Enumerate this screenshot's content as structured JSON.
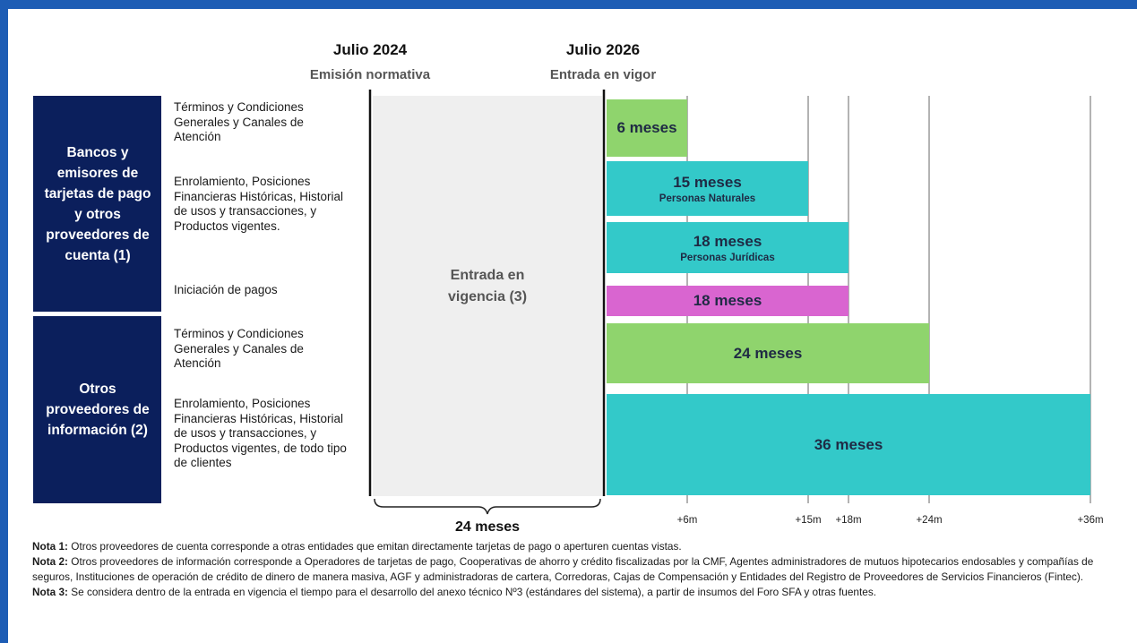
{
  "chart_data": {
    "type": "timeline",
    "milestones": [
      {
        "date": "Julio 2024",
        "label": "Emisión normativa"
      },
      {
        "date": "Julio 2026",
        "label": "Entrada en vigor"
      }
    ],
    "phase": {
      "label": "Entrada en vigencia (3)",
      "duration_label": "24 meses"
    },
    "groups": [
      {
        "name": "Bancos y emisores de tarjetas de pago y otros proveedores de cuenta (1)",
        "descriptions": [
          "Términos y Condiciones Generales y Canales de Atención",
          "Enrolamiento, Posiciones Financieras Históricas, Historial de usos y transacciones, y Productos vigentes.",
          "Iniciación de pagos"
        ]
      },
      {
        "name": "Otros proveedores de información (2)",
        "descriptions": [
          "Términos y Condiciones Generales y Canales de Atención",
          "Enrolamiento, Posiciones Financieras Históricas, Historial de usos y transacciones, y Productos vigentes, de todo tipo de clientes"
        ]
      }
    ],
    "values": [
      6,
      15,
      18,
      18,
      24,
      36
    ],
    "value_labels": [
      "6 meses",
      "15 meses",
      "18 meses",
      "18 meses",
      "24 meses",
      "36 meses"
    ],
    "sublabels": [
      null,
      "Personas Naturales",
      "Personas Jurídicas",
      null,
      null,
      null
    ],
    "colors": [
      "#8fd46d",
      "#33c9c9",
      "#33c9c9",
      "#d965d0",
      "#8fd46d",
      "#33c9c9"
    ],
    "xlim": [
      0,
      36
    ],
    "xticks": [
      {
        "value": 6,
        "label": "+6m"
      },
      {
        "value": 15,
        "label": "+15m"
      },
      {
        "value": 18,
        "label": "+18m"
      },
      {
        "value": 24,
        "label": "+24m"
      },
      {
        "value": 36,
        "label": "+36m"
      }
    ],
    "grid": true,
    "notes": [
      {
        "label": "Nota 1:",
        "text": "Otros proveedores de cuenta corresponde a otras entidades que emitan directamente tarjetas de pago o aperturen cuentas vistas."
      },
      {
        "label": "Nota 2:",
        "text": "Otros proveedores de información corresponde a Operadores de tarjetas de pago, Cooperativas de ahorro y crédito fiscalizadas por la CMF, Agentes administradores de mutuos hipotecarios endosables y compañías de seguros, Instituciones de operación de crédito de dinero de manera masiva, AGF y administradoras de cartera, Corredoras, Cajas de Compensación y Entidades del Registro de Proveedores de Servicios Financieros (Fintec)."
      },
      {
        "label": "Nota 3:",
        "text": "Se considera dentro de la entrada en vigencia el tiempo para el desarrollo del anexo técnico Nº3 (estándares del sistema), a partir de insumos del Foro SFA y otras fuentes."
      }
    ]
  }
}
